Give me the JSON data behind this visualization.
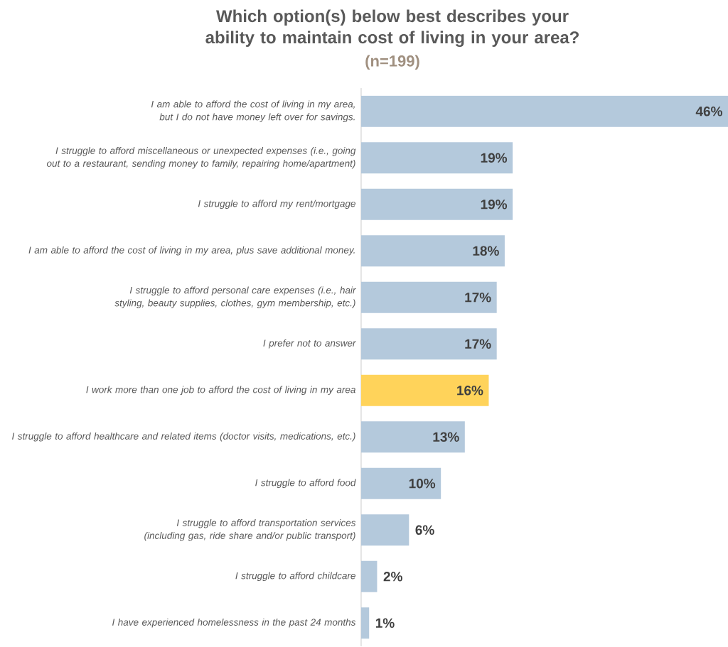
{
  "chart_data": {
    "type": "bar",
    "orientation": "horizontal",
    "title": "Which option(s) below best describes your ability to maintain cost of living in your area?",
    "subtitle": "(n=199)",
    "categories": [
      "I am able to afford the cost of living in my area, but I do not have money left over for savings.",
      "I struggle to afford miscellaneous or unexpected expenses (i.e., going out to a restaurant, sending money to family, repairing home/apartment)",
      "I struggle to afford my rent/mortgage",
      "I am able to afford the cost of living in my area, plus save additional money.",
      "I struggle to afford personal care expenses (i.e., hair styling, beauty supplies, clothes, gym membership, etc.)",
      "I prefer not to answer",
      "I work more than one job to afford the cost of living in my area",
      "I struggle to afford healthcare and related items (doctor visits, medications, etc.)",
      "I struggle to afford food",
      "I struggle to afford transportation services (including gas, ride share and/or public transport)",
      "I struggle to afford childcare",
      "I have experienced homelessness in the past 24 months"
    ],
    "values": [
      46,
      19,
      19,
      18,
      17,
      17,
      16,
      13,
      10,
      6,
      2,
      1
    ],
    "value_labels": [
      "46%",
      "19%",
      "19%",
      "18%",
      "17%",
      "17%",
      "16%",
      "13%",
      "10%",
      "6%",
      "2%",
      "1%"
    ],
    "colors": [
      "#b4c9dc",
      "#b4c9dc",
      "#b4c9dc",
      "#b4c9dc",
      "#b4c9dc",
      "#b4c9dc",
      "#ffd35a",
      "#b4c9dc",
      "#b4c9dc",
      "#b4c9dc",
      "#b4c9dc",
      "#b4c9dc"
    ]
  }
}
